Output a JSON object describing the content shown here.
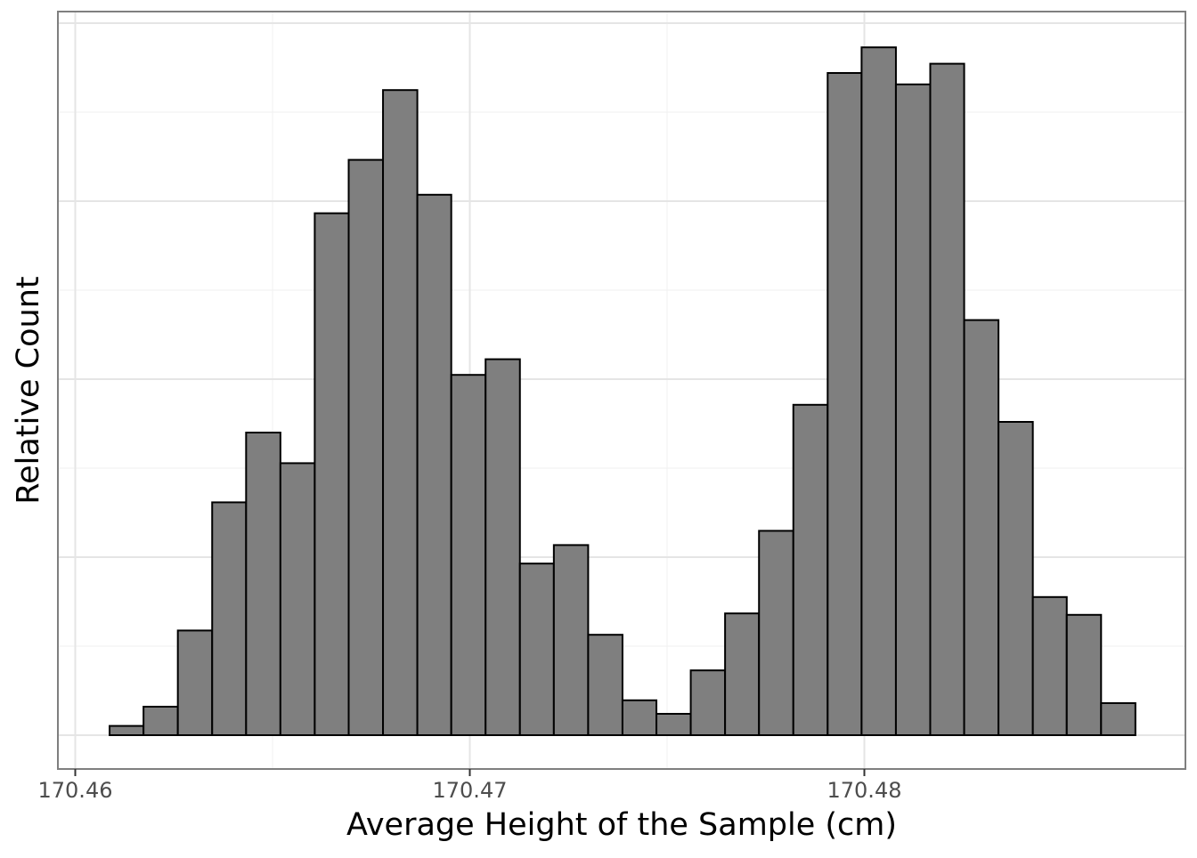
{
  "chart_data": {
    "type": "bar",
    "subtype": "histogram",
    "title": "",
    "xlabel": "Average Height of the Sample (cm)",
    "ylabel": "Relative Count",
    "xlim": [
      170.46,
      170.4887
    ],
    "ylim": [
      0,
      1.052
    ],
    "x_ticks": [
      170.46,
      170.47,
      170.48
    ],
    "x_tick_labels": [
      "170.46",
      "170.47",
      "170.48"
    ],
    "y_major_gridlines": [
      0,
      0.25,
      0.5,
      0.75
    ],
    "y_tick_labels_shown": false,
    "grid": true,
    "legend": "none",
    "bin_width": 0.000866,
    "bins": [
      {
        "x0": 170.46087,
        "x1": 170.46173,
        "value": 0.013
      },
      {
        "x0": 170.46173,
        "x1": 170.4626,
        "value": 0.04
      },
      {
        "x0": 170.4626,
        "x1": 170.46347,
        "value": 0.147
      },
      {
        "x0": 170.46347,
        "x1": 170.46433,
        "value": 0.327
      },
      {
        "x0": 170.46433,
        "x1": 170.4652,
        "value": 0.425
      },
      {
        "x0": 170.4652,
        "x1": 170.46607,
        "value": 0.382
      },
      {
        "x0": 170.46607,
        "x1": 170.46693,
        "value": 0.733
      },
      {
        "x0": 170.46693,
        "x1": 170.4678,
        "value": 0.808
      },
      {
        "x0": 170.4678,
        "x1": 170.46867,
        "value": 0.906
      },
      {
        "x0": 170.46867,
        "x1": 170.46953,
        "value": 0.759
      },
      {
        "x0": 170.46953,
        "x1": 170.4704,
        "value": 0.506
      },
      {
        "x0": 170.4704,
        "x1": 170.47127,
        "value": 0.528
      },
      {
        "x0": 170.47127,
        "x1": 170.47213,
        "value": 0.241
      },
      {
        "x0": 170.47213,
        "x1": 170.473,
        "value": 0.267
      },
      {
        "x0": 170.473,
        "x1": 170.47387,
        "value": 0.141
      },
      {
        "x0": 170.47387,
        "x1": 170.47473,
        "value": 0.049
      },
      {
        "x0": 170.47473,
        "x1": 170.4756,
        "value": 0.03
      },
      {
        "x0": 170.4756,
        "x1": 170.47647,
        "value": 0.091
      },
      {
        "x0": 170.47647,
        "x1": 170.47733,
        "value": 0.171
      },
      {
        "x0": 170.47733,
        "x1": 170.4782,
        "value": 0.287
      },
      {
        "x0": 170.4782,
        "x1": 170.47907,
        "value": 0.464
      },
      {
        "x0": 170.47907,
        "x1": 170.47993,
        "value": 0.93
      },
      {
        "x0": 170.47993,
        "x1": 170.4808,
        "value": 0.966
      },
      {
        "x0": 170.4808,
        "x1": 170.48167,
        "value": 0.914
      },
      {
        "x0": 170.48167,
        "x1": 170.48253,
        "value": 0.943
      },
      {
        "x0": 170.48253,
        "x1": 170.4834,
        "value": 0.583
      },
      {
        "x0": 170.4834,
        "x1": 170.48427,
        "value": 0.44
      },
      {
        "x0": 170.48427,
        "x1": 170.48513,
        "value": 0.194
      },
      {
        "x0": 170.48513,
        "x1": 170.486,
        "value": 0.169
      },
      {
        "x0": 170.486,
        "x1": 170.48687,
        "value": 0.045
      }
    ],
    "colors": {
      "bar_fill": "#7f7f7f",
      "bar_stroke": "#000000",
      "grid_major": "#e5e5e5",
      "grid_minor": "#f2f2f2",
      "panel_border": "#7f7f7f",
      "tick_text": "#4d4d4d",
      "axis_title": "#000000"
    }
  }
}
